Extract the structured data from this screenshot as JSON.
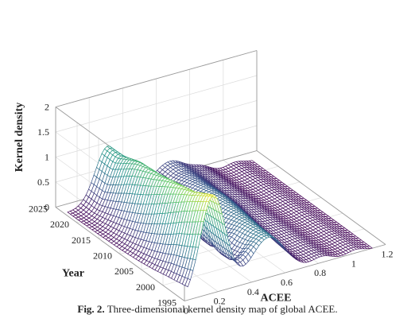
{
  "caption": {
    "label": "Fig. 2.",
    "text": "Three-dimensional kernel density map of global ACEE."
  },
  "chart_data": {
    "type": "surface",
    "x": {
      "label": "ACEE",
      "ticks": [
        "0",
        "0.2",
        "0.4",
        "0.6",
        "0.8",
        "1",
        "1.2"
      ],
      "range": [
        0,
        1.2
      ]
    },
    "y": {
      "label": "Year",
      "ticks": [
        "1995",
        "2000",
        "2005",
        "2010",
        "2015",
        "2020",
        "2025"
      ],
      "range": [
        1995,
        2025
      ]
    },
    "z": {
      "label": "Kernel density",
      "ticks": [
        "0",
        "0.5",
        "1",
        "1.5",
        "2"
      ],
      "range": [
        0,
        2
      ]
    },
    "colormap": [
      "#440154",
      "#3b528b",
      "#21918c",
      "#5ec962",
      "#fde725"
    ],
    "grid": true,
    "density_profile": {
      "years": [
        1995,
        2000,
        2005,
        2010,
        2015,
        2020
      ],
      "main_peak_x": [
        0.17,
        0.18,
        0.2,
        0.22,
        0.24,
        0.26
      ],
      "main_peak_height": [
        1.95,
        1.7,
        1.55,
        1.4,
        1.3,
        1.1
      ],
      "secondary_peak_x": [
        0.5,
        0.52,
        0.55,
        0.58,
        0.6,
        0.63
      ],
      "secondary_peak_height": [
        0.8,
        0.75,
        0.7,
        0.65,
        0.55,
        0.45
      ]
    }
  }
}
